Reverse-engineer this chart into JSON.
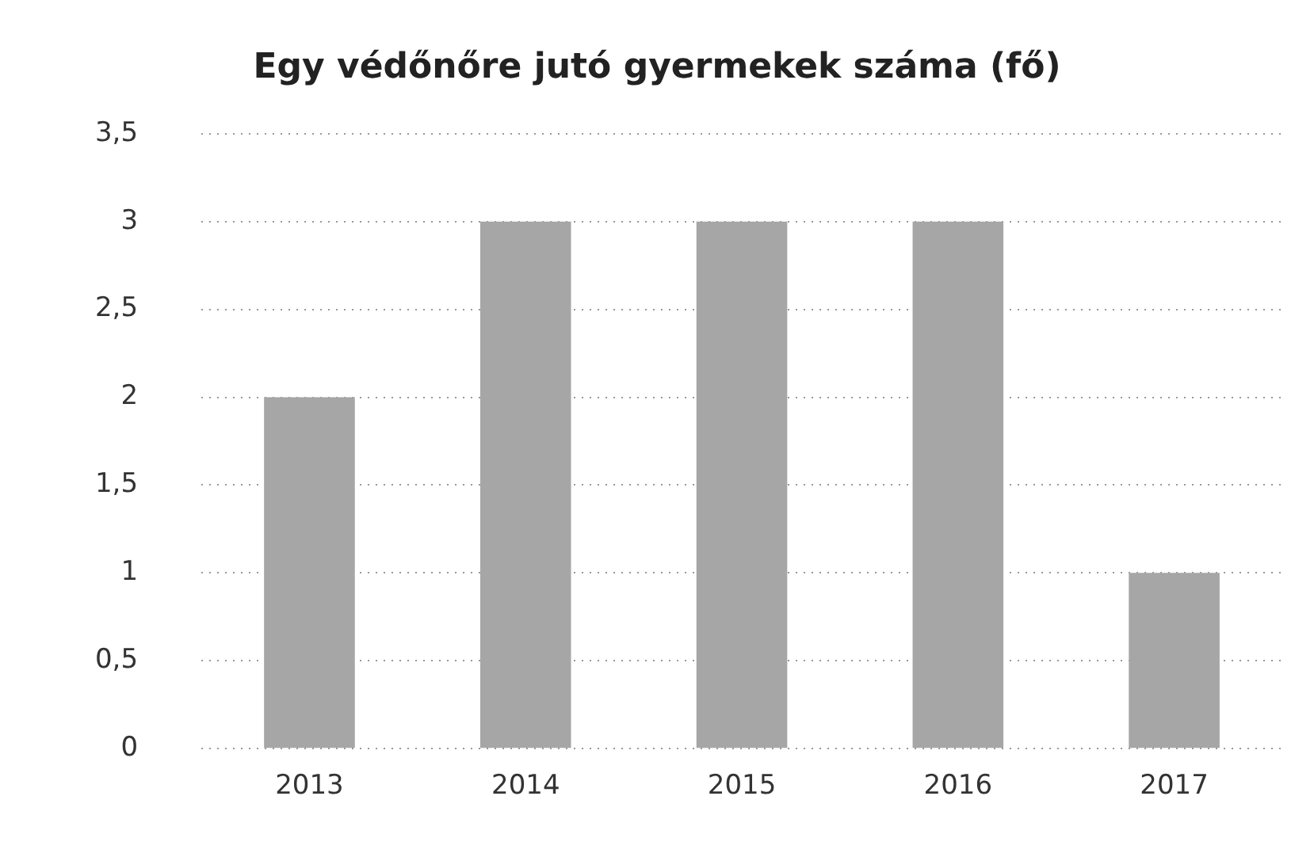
{
  "chart_data": {
    "type": "bar",
    "title": "Egy védőnőre jutó gyermekek száma (fő)",
    "categories": [
      "2013",
      "2014",
      "2015",
      "2016",
      "2017"
    ],
    "values": [
      2,
      3,
      3,
      3,
      1
    ],
    "color": "#a6a6a6",
    "ylim": [
      0,
      3.5
    ],
    "yticks": [
      0,
      {
        "value": 0.5,
        "label": "0,5"
      },
      1,
      {
        "value": 1.5,
        "label": "1,5"
      },
      2,
      {
        "value": 2.5,
        "label": "2,5"
      },
      3,
      {
        "value": 3.5,
        "label": "3,5"
      }
    ],
    "grid": "y",
    "legend": false
  }
}
